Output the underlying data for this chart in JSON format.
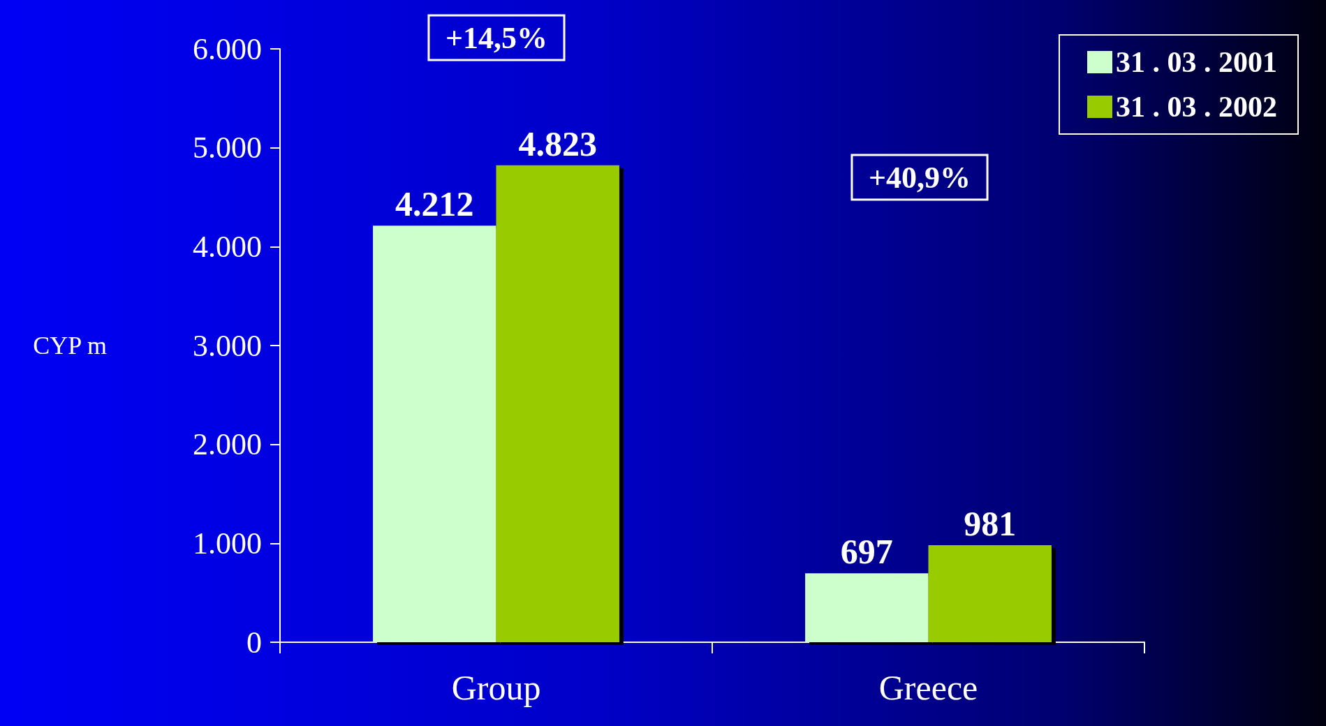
{
  "chart_data": {
    "type": "bar",
    "ylabel": "CYP m",
    "categories": [
      "Group",
      "Greece"
    ],
    "series": [
      {
        "name": "31 . 03 . 2001",
        "color": "#ccffcc",
        "values": [
          4212,
          697
        ],
        "value_labels": [
          "4.212",
          "697"
        ]
      },
      {
        "name": "31 . 03 . 2002",
        "color": "#99cc00",
        "values": [
          4823,
          981
        ],
        "value_labels": [
          "4.823",
          "981"
        ]
      }
    ],
    "ylim": [
      0,
      6000
    ],
    "yticks": [
      {
        "value": 0,
        "label": "0"
      },
      {
        "value": 1000,
        "label": "1.000"
      },
      {
        "value": 2000,
        "label": "2.000"
      },
      {
        "value": 3000,
        "label": "3.000"
      },
      {
        "value": 4000,
        "label": "4.000"
      },
      {
        "value": 5000,
        "label": "5.000"
      },
      {
        "value": 6000,
        "label": "6.000"
      }
    ],
    "annotations": [
      "+14,5%",
      "+40,9%"
    ],
    "grid": false,
    "legend": "top right"
  }
}
